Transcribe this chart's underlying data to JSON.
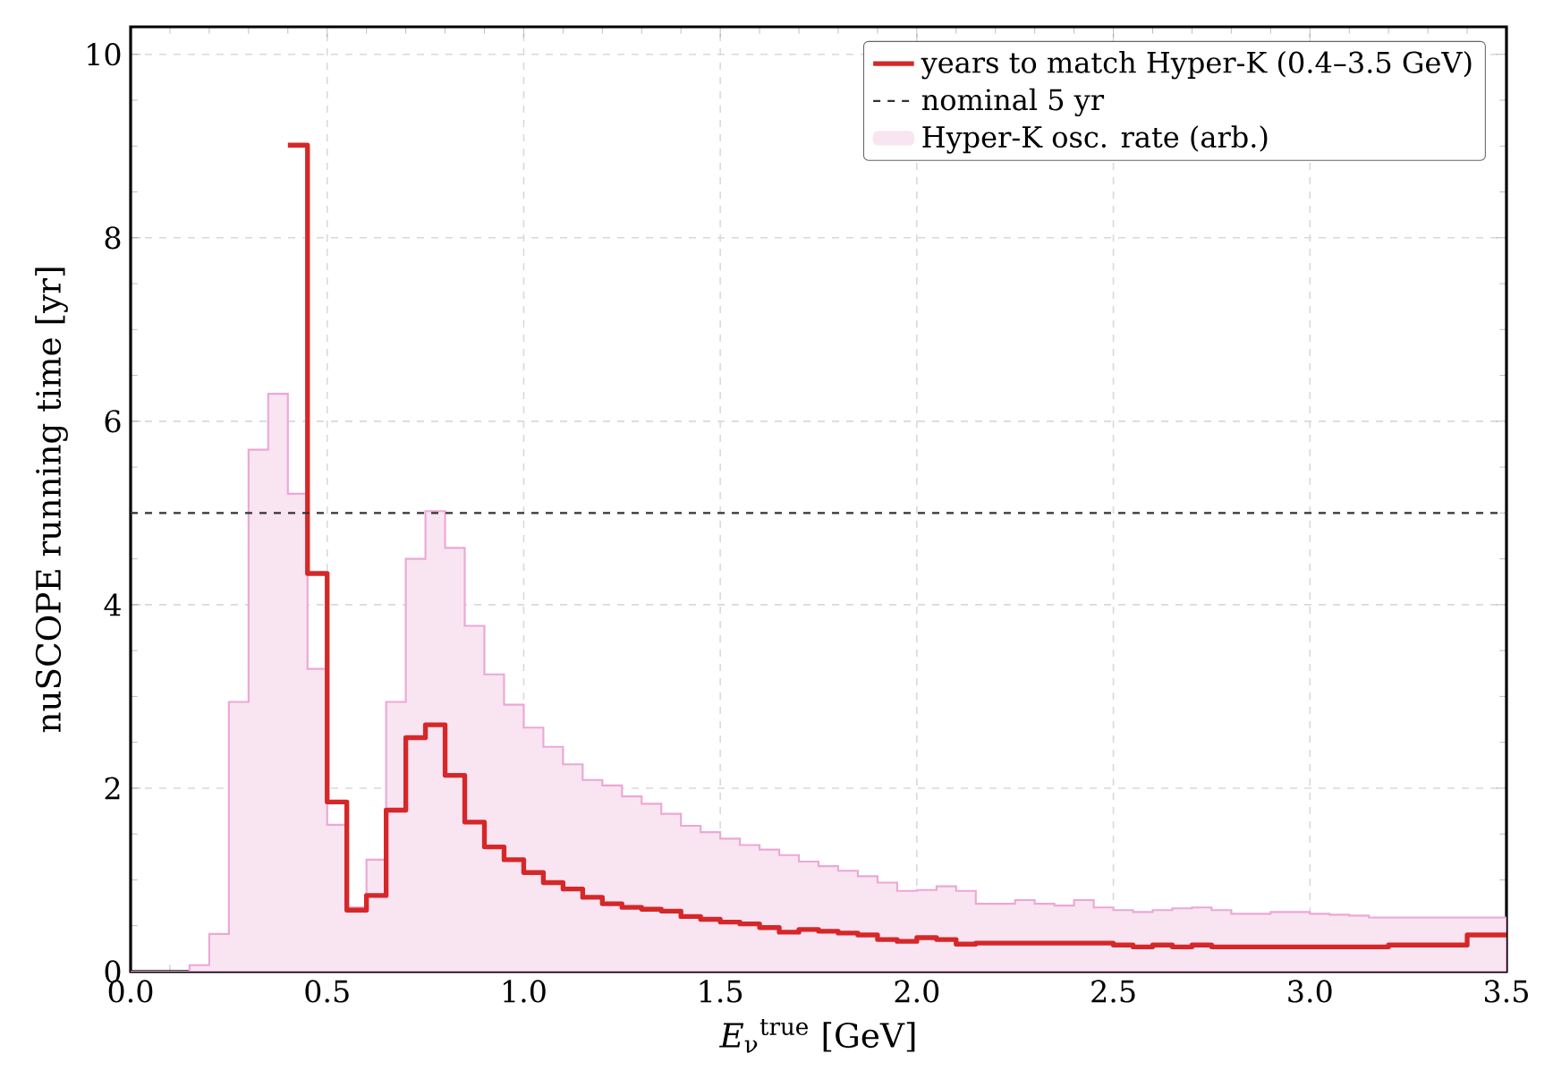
{
  "chart_data": {
    "type": "histogram",
    "xlabel": "*E*$_{ν}$$^{true}$  [GeV]",
    "ylabel": "nuSCOPE running time [yr]",
    "bins": [
      0.0,
      0.05,
      0.1,
      0.15,
      0.2,
      0.25,
      0.3,
      0.35,
      0.4,
      0.45,
      0.5,
      0.55,
      0.6,
      0.65,
      0.7,
      0.75,
      0.8,
      0.85,
      0.9,
      0.95,
      1.0,
      1.05,
      1.1,
      1.15,
      1.2,
      1.25,
      1.3,
      1.35,
      1.4,
      1.45,
      1.5,
      1.55,
      1.6,
      1.65,
      1.7,
      1.75,
      1.8,
      1.85,
      1.9,
      1.95,
      2.0,
      2.05,
      2.1,
      2.15,
      2.2,
      2.25,
      2.3,
      2.35,
      2.4,
      2.45,
      2.5,
      2.55,
      2.6,
      2.65,
      2.7,
      2.75,
      2.8,
      2.85,
      2.9,
      2.95,
      3.0,
      3.05,
      3.1,
      3.15,
      3.2,
      3.25,
      3.3,
      3.35,
      3.4,
      3.45,
      3.5
    ],
    "series": [
      {
        "name": "Hyper-K osc. rate (arb.)",
        "color": "#f9e4f2",
        "values": [
          0,
          0,
          0,
          0.07,
          0.41,
          2.94,
          5.69,
          6.3,
          5.21,
          3.3,
          1.6,
          0.7,
          1.22,
          2.94,
          4.5,
          5.02,
          4.62,
          3.77,
          3.24,
          2.91,
          2.66,
          2.45,
          2.26,
          2.09,
          2.03,
          1.91,
          1.83,
          1.72,
          1.59,
          1.52,
          1.45,
          1.38,
          1.33,
          1.27,
          1.2,
          1.15,
          1.1,
          1.04,
          0.97,
          0.88,
          0.89,
          0.93,
          0.88,
          0.74,
          0.74,
          0.78,
          0.74,
          0.72,
          0.78,
          0.7,
          0.67,
          0.65,
          0.67,
          0.69,
          0.7,
          0.67,
          0.63,
          0.63,
          0.65,
          0.65,
          0.63,
          0.62,
          0.61,
          0.59,
          0.59,
          0.59,
          0.59,
          0.59,
          0.59,
          0.59
        ]
      },
      {
        "name": "years to match Hyper-K  (0.4–3.5 GeV)",
        "type": "step",
        "color": "#d62728",
        "x": [
          0.4,
          0.45,
          0.5,
          0.55,
          0.6,
          0.65,
          0.7,
          0.75,
          0.8,
          0.85,
          0.9,
          0.95,
          1.0,
          1.05,
          1.1,
          1.15,
          1.2,
          1.25,
          1.3,
          1.35,
          1.4,
          1.45,
          1.5,
          1.55,
          1.6,
          1.65,
          1.7,
          1.75,
          1.8,
          1.85,
          1.9,
          1.95,
          2.0,
          2.05,
          2.1,
          2.15,
          2.2,
          2.25,
          2.3,
          2.35,
          2.4,
          2.45,
          2.5,
          2.55,
          2.6,
          2.65,
          2.7,
          2.75,
          2.8,
          2.85,
          2.9,
          2.95,
          3.0,
          3.05,
          3.1,
          3.15,
          3.2,
          3.25,
          3.3,
          3.35,
          3.4,
          3.45,
          3.5
        ],
        "values": [
          9.01,
          4.34,
          1.85,
          0.67,
          0.83,
          1.76,
          2.55,
          2.69,
          2.14,
          1.63,
          1.36,
          1.22,
          1.08,
          0.97,
          0.9,
          0.81,
          0.74,
          0.7,
          0.68,
          0.66,
          0.6,
          0.57,
          0.54,
          0.52,
          0.48,
          0.43,
          0.46,
          0.44,
          0.42,
          0.4,
          0.35,
          0.33,
          0.37,
          0.35,
          0.3,
          0.31,
          0.31,
          0.31,
          0.31,
          0.31,
          0.31,
          0.31,
          0.29,
          0.27,
          0.29,
          0.27,
          0.29,
          0.27,
          0.27,
          0.27,
          0.27,
          0.27,
          0.27,
          0.27,
          0.27,
          0.27,
          0.29,
          0.29,
          0.29,
          0.29,
          0.4,
          0.4,
          0.4
        ]
      }
    ],
    "ref_lines": [
      {
        "axis": "y",
        "value": 5,
        "label": "nominal 5 yr",
        "color": "#333333",
        "line_style": "dashed"
      }
    ],
    "xlim": [
      0,
      3.5
    ],
    "ylim": [
      0,
      10.3
    ],
    "xticks": [
      {
        "value": 0,
        "label": "0.0"
      },
      {
        "value": 0.5,
        "label": "0.5"
      },
      {
        "value": 1,
        "label": "1.0"
      },
      {
        "value": 1.5,
        "label": "1.5"
      },
      {
        "value": 2,
        "label": "2.0"
      },
      {
        "value": 2.5,
        "label": "2.5"
      },
      {
        "value": 3,
        "label": "3.0"
      },
      {
        "value": 3.5,
        "label": "3.5"
      }
    ],
    "yticks": [
      0,
      2,
      4,
      6,
      8,
      10
    ],
    "grid": true,
    "legend": "top right"
  }
}
